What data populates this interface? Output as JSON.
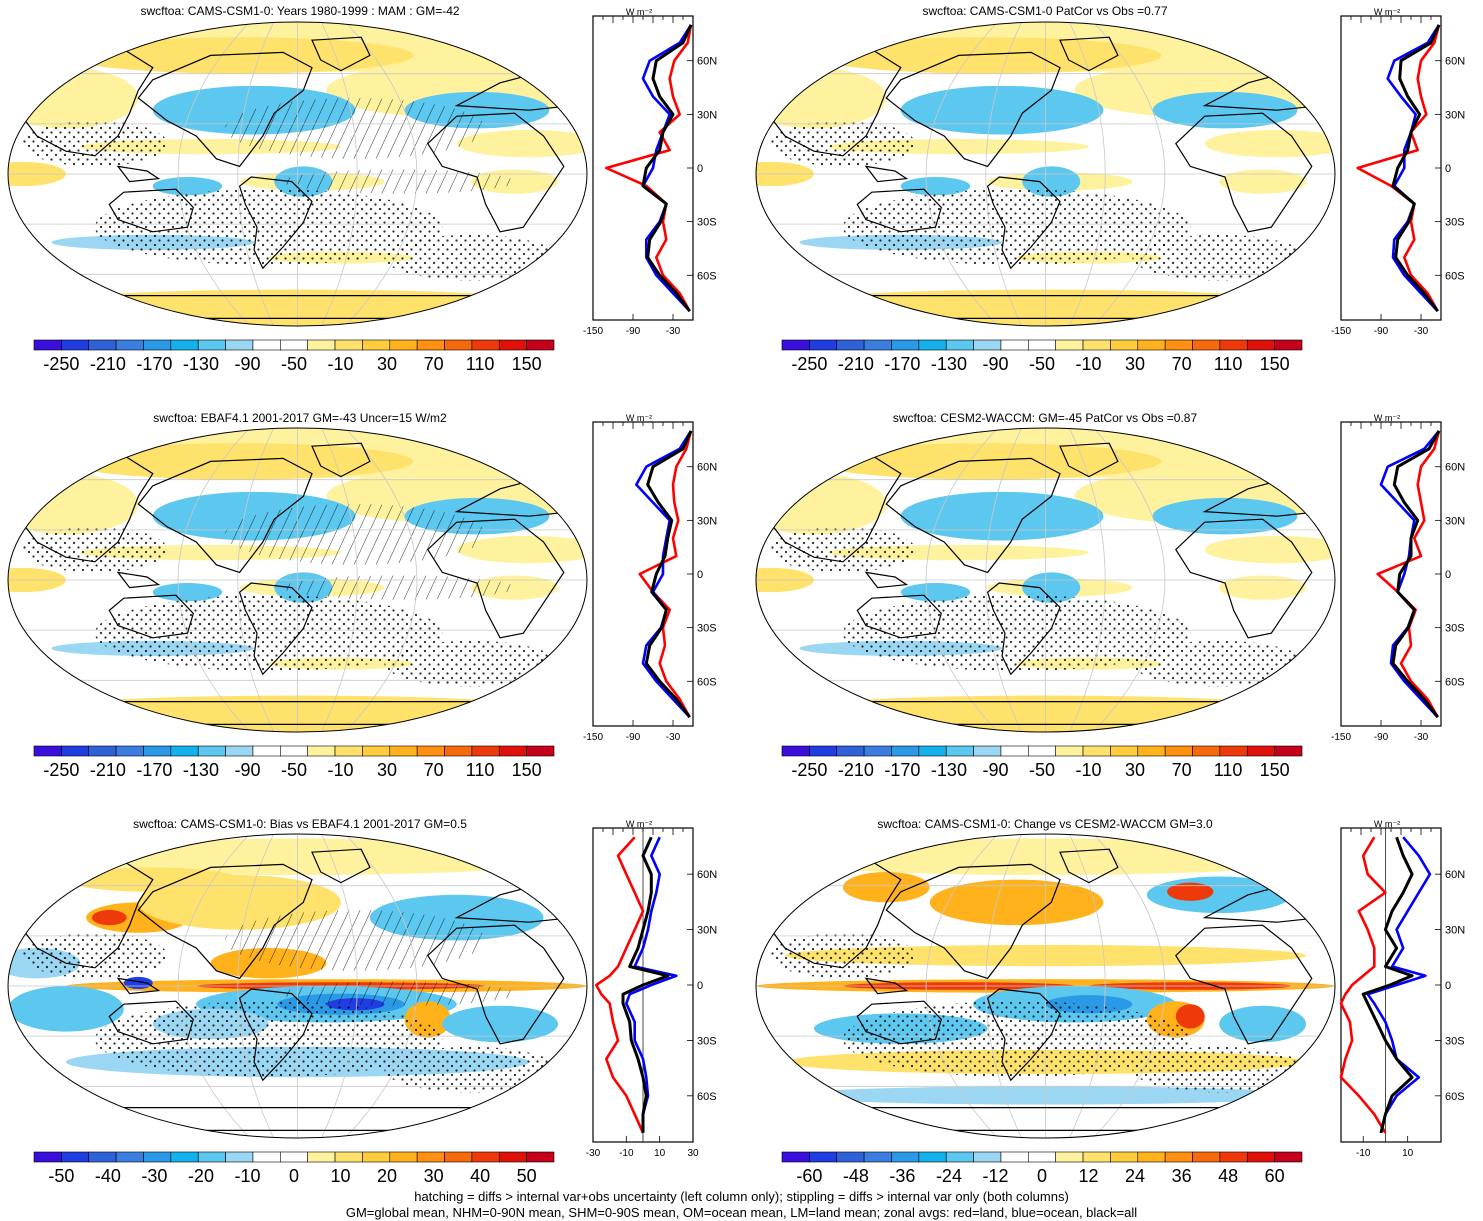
{
  "colors": {
    "land": "#ff0000",
    "ocean": "#0000ff",
    "all": "#000000",
    "grid": "#c8c8c8",
    "palette": [
      "#3a0fdc",
      "#1f3de0",
      "#2f62d8",
      "#3b7ee0",
      "#2a9ae6",
      "#14b2ec",
      "#5cc7ef",
      "#9bd7f2",
      "#ffffff",
      "#ffffff",
      "#fff29e",
      "#ffe26b",
      "#ffcd3c",
      "#ffb21c",
      "#ff9012",
      "#f76a0c",
      "#ee3a0a",
      "#e0100a",
      "#c4001a"
    ]
  },
  "panels": [
    {
      "id": "p1",
      "title": "swcftoa: CAMS-CSM1-0: Years 1980-1999 : MAM : GM=-42",
      "colorbar_labels": [
        "-250",
        "-210",
        "-170",
        "-130",
        "-90",
        "-50",
        "-10",
        "30",
        "70",
        "110",
        "150"
      ],
      "zonal": {
        "unit": "W m⁻²",
        "xticks": [
          "-150",
          "-90",
          "-30"
        ],
        "xlim": [
          -150,
          0
        ],
        "lat_labels": [
          "60N",
          "30N",
          "0",
          "30S",
          "60S"
        ],
        "series": [
          {
            "name": "land",
            "color": "red",
            "lat": [
              80,
              70,
              60,
              50,
              40,
              30,
              20,
              10,
              0,
              -10,
              -20,
              -30,
              -40,
              -50,
              -60,
              -70,
              -80
            ],
            "values": [
              -3,
              -8,
              -28,
              -35,
              -30,
              -20,
              -50,
              -35,
              -130,
              -70,
              -40,
              -45,
              -40,
              -55,
              -45,
              -20,
              -5
            ]
          },
          {
            "name": "ocean",
            "color": "blue",
            "lat": [
              80,
              70,
              60,
              50,
              40,
              30,
              20,
              10,
              0,
              -10,
              -20,
              -30,
              -40,
              -50,
              -60,
              -70,
              -80
            ],
            "values": [
              -3,
              -20,
              -65,
              -75,
              -60,
              -35,
              -45,
              -55,
              -60,
              -75,
              -40,
              -50,
              -70,
              -70,
              -55,
              -30,
              -5
            ]
          },
          {
            "name": "all",
            "color": "black",
            "lat": [
              80,
              70,
              60,
              50,
              40,
              30,
              20,
              10,
              0,
              -10,
              -20,
              -30,
              -40,
              -50,
              -60,
              -70,
              -80
            ],
            "values": [
              -3,
              -15,
              -55,
              -60,
              -50,
              -30,
              -45,
              -50,
              -70,
              -75,
              -40,
              -48,
              -65,
              -68,
              -50,
              -25,
              -5
            ]
          }
        ]
      }
    },
    {
      "id": "p2",
      "title": "swcftoa: CAMS-CSM1-0 PatCor vs Obs =0.77",
      "colorbar_labels": [
        "-250",
        "-210",
        "-170",
        "-130",
        "-90",
        "-50",
        "-10",
        "30",
        "70",
        "110",
        "150"
      ],
      "zonal": {
        "unit": "W m⁻²",
        "xticks": [
          "-150",
          "-90",
          "-30"
        ],
        "xlim": [
          -150,
          0
        ],
        "lat_labels": [
          "60N",
          "30N",
          "0",
          "30S",
          "60S"
        ],
        "series": [
          {
            "name": "land",
            "color": "red",
            "lat": [
              80,
              70,
              60,
              50,
              40,
              30,
              20,
              10,
              0,
              -10,
              -20,
              -30,
              -40,
              -50,
              -60,
              -70,
              -80
            ],
            "values": [
              -3,
              -10,
              -30,
              -35,
              -30,
              -22,
              -45,
              -35,
              -125,
              -75,
              -40,
              -45,
              -40,
              -55,
              -45,
              -20,
              -5
            ]
          },
          {
            "name": "ocean",
            "color": "blue",
            "lat": [
              80,
              70,
              60,
              50,
              40,
              30,
              20,
              10,
              0,
              -10,
              -20,
              -30,
              -40,
              -50,
              -60,
              -70,
              -80
            ],
            "values": [
              -3,
              -20,
              -70,
              -80,
              -60,
              -38,
              -45,
              -55,
              -55,
              -70,
              -40,
              -50,
              -70,
              -72,
              -55,
              -30,
              -5
            ]
          },
          {
            "name": "all",
            "color": "black",
            "lat": [
              80,
              70,
              60,
              50,
              40,
              30,
              20,
              10,
              0,
              -10,
              -20,
              -30,
              -40,
              -50,
              -60,
              -70,
              -80
            ],
            "values": [
              -3,
              -15,
              -60,
              -62,
              -50,
              -32,
              -45,
              -50,
              -65,
              -72,
              -40,
              -48,
              -65,
              -68,
              -50,
              -25,
              -5
            ]
          }
        ]
      }
    },
    {
      "id": "p3",
      "title": "swcftoa: EBAF4.1 2001-2017 GM=-43 Uncer=15 W/m2",
      "colorbar_labels": [
        "-250",
        "-210",
        "-170",
        "-130",
        "-90",
        "-50",
        "-10",
        "30",
        "70",
        "110",
        "150"
      ],
      "zonal": {
        "unit": "W m⁻²",
        "xticks": [
          "-150",
          "-90",
          "-30"
        ],
        "xlim": [
          -150,
          0
        ],
        "lat_labels": [
          "60N",
          "30N",
          "0",
          "30S",
          "60S"
        ],
        "series": [
          {
            "name": "land",
            "color": "red",
            "lat": [
              80,
              70,
              60,
              50,
              40,
              30,
              20,
              10,
              0,
              -10,
              -20,
              -30,
              -40,
              -50,
              -60,
              -70,
              -80
            ],
            "values": [
              -3,
              -10,
              -25,
              -30,
              -28,
              -22,
              -30,
              -25,
              -80,
              -60,
              -35,
              -45,
              -42,
              -50,
              -40,
              -20,
              -5
            ]
          },
          {
            "name": "ocean",
            "color": "blue",
            "lat": [
              80,
              70,
              60,
              50,
              40,
              30,
              20,
              10,
              0,
              -10,
              -20,
              -30,
              -40,
              -50,
              -60,
              -70,
              -80
            ],
            "values": [
              -3,
              -20,
              -70,
              -85,
              -60,
              -35,
              -40,
              -45,
              -45,
              -60,
              -40,
              -48,
              -70,
              -75,
              -55,
              -30,
              -5
            ]
          },
          {
            "name": "all",
            "color": "black",
            "lat": [
              80,
              70,
              60,
              50,
              40,
              30,
              20,
              10,
              0,
              -10,
              -20,
              -30,
              -40,
              -50,
              -60,
              -70,
              -80
            ],
            "values": [
              -3,
              -15,
              -60,
              -68,
              -52,
              -32,
              -38,
              -42,
              -55,
              -62,
              -40,
              -47,
              -65,
              -70,
              -50,
              -25,
              -5
            ]
          }
        ]
      }
    },
    {
      "id": "p4",
      "title": "swcftoa: CESM2-WACCM: GM=-45 PatCor vs Obs =0.87",
      "colorbar_labels": [
        "-250",
        "-210",
        "-170",
        "-130",
        "-90",
        "-50",
        "-10",
        "30",
        "70",
        "110",
        "150"
      ],
      "zonal": {
        "unit": "W m⁻²",
        "xticks": [
          "-150",
          "-90",
          "-30"
        ],
        "xlim": [
          -150,
          0
        ],
        "lat_labels": [
          "60N",
          "30N",
          "0",
          "30S",
          "60S"
        ],
        "series": [
          {
            "name": "land",
            "color": "red",
            "lat": [
              80,
              70,
              60,
              50,
              40,
              30,
              20,
              10,
              0,
              -10,
              -20,
              -30,
              -40,
              -50,
              -60,
              -70,
              -80
            ],
            "values": [
              -3,
              -10,
              -30,
              -35,
              -30,
              -25,
              -40,
              -30,
              -95,
              -65,
              -38,
              -48,
              -45,
              -60,
              -45,
              -20,
              -5
            ]
          },
          {
            "name": "ocean",
            "color": "blue",
            "lat": [
              80,
              70,
              60,
              50,
              40,
              30,
              20,
              10,
              0,
              -10,
              -20,
              -30,
              -40,
              -50,
              -60,
              -70,
              -80
            ],
            "values": [
              -3,
              -25,
              -80,
              -90,
              -65,
              -40,
              -45,
              -48,
              -55,
              -65,
              -40,
              -50,
              -72,
              -75,
              -55,
              -30,
              -5
            ]
          },
          {
            "name": "all",
            "color": "black",
            "lat": [
              80,
              70,
              60,
              50,
              40,
              30,
              20,
              10,
              0,
              -10,
              -20,
              -30,
              -40,
              -50,
              -60,
              -70,
              -80
            ],
            "values": [
              -3,
              -18,
              -65,
              -70,
              -55,
              -35,
              -45,
              -45,
              -62,
              -65,
              -40,
              -49,
              -68,
              -72,
              -50,
              -25,
              -5
            ]
          }
        ]
      }
    },
    {
      "id": "p5",
      "title": "swcftoa: CAMS-CSM1-0: Bias vs EBAF4.1 2001-2017 GM=0.5",
      "colorbar_labels": [
        "-50",
        "-40",
        "-30",
        "-20",
        "-10",
        "0",
        "10",
        "20",
        "30",
        "40",
        "50"
      ],
      "zonal": {
        "unit": "W m⁻²",
        "xticks": [
          "-30",
          "-10",
          "10",
          "30"
        ],
        "xlim": [
          -30,
          30
        ],
        "lat_labels": [
          "60N",
          "30N",
          "0",
          "30S",
          "60S"
        ],
        "series": [
          {
            "name": "land",
            "color": "red",
            "lat": [
              80,
              70,
              60,
              50,
              40,
              30,
              20,
              10,
              5,
              0,
              -5,
              -10,
              -20,
              -30,
              -40,
              -50,
              -60,
              -70,
              -80
            ],
            "values": [
              -5,
              -15,
              -10,
              -5,
              0,
              -5,
              -10,
              -15,
              -20,
              -28,
              -25,
              -20,
              -18,
              -15,
              -22,
              -18,
              -10,
              -5,
              0
            ]
          },
          {
            "name": "ocean",
            "color": "blue",
            "lat": [
              80,
              70,
              60,
              50,
              40,
              30,
              20,
              10,
              5,
              0,
              -5,
              -10,
              -20,
              -30,
              -40,
              -50,
              -60,
              -70,
              -80
            ],
            "values": [
              10,
              5,
              10,
              8,
              5,
              3,
              0,
              -5,
              20,
              5,
              -8,
              -10,
              -5,
              -5,
              0,
              2,
              3,
              0,
              0
            ]
          },
          {
            "name": "all",
            "color": "black",
            "lat": [
              80,
              70,
              60,
              50,
              40,
              30,
              20,
              10,
              5,
              0,
              -5,
              -10,
              -20,
              -30,
              -40,
              -50,
              -60,
              -70,
              -80
            ],
            "values": [
              5,
              0,
              5,
              5,
              3,
              0,
              -3,
              -8,
              15,
              0,
              -12,
              -12,
              -8,
              -7,
              -3,
              0,
              2,
              0,
              0
            ]
          }
        ]
      }
    },
    {
      "id": "p6",
      "title": "swcftoa: CAMS-CSM1-0: Change vs CESM2-WACCM GM=3.0",
      "colorbar_labels": [
        "-60",
        "-48",
        "-36",
        "-24",
        "-12",
        "0",
        "12",
        "24",
        "36",
        "48",
        "60"
      ],
      "zonal": {
        "unit": "W m⁻²",
        "xticks": [
          "-10",
          "10"
        ],
        "xlim": [
          -20,
          25
        ],
        "lat_labels": [
          "60N",
          "30N",
          "0",
          "30S",
          "60S"
        ],
        "series": [
          {
            "name": "land",
            "color": "red",
            "lat": [
              80,
              70,
              60,
              50,
              40,
              30,
              20,
              10,
              5,
              0,
              -5,
              -10,
              -20,
              -30,
              -40,
              -50,
              -60,
              -70,
              -80
            ],
            "values": [
              -5,
              -10,
              -8,
              0,
              -12,
              -8,
              -5,
              -5,
              -10,
              -15,
              -18,
              -20,
              -16,
              -15,
              -18,
              -20,
              -12,
              -5,
              0
            ]
          },
          {
            "name": "ocean",
            "color": "blue",
            "lat": [
              80,
              70,
              60,
              50,
              40,
              30,
              20,
              10,
              5,
              0,
              -5,
              -10,
              -20,
              -30,
              -40,
              -50,
              -60,
              -70,
              -80
            ],
            "values": [
              8,
              15,
              20,
              15,
              10,
              5,
              8,
              3,
              18,
              5,
              -8,
              -5,
              0,
              3,
              5,
              15,
              5,
              0,
              -2
            ]
          },
          {
            "name": "all",
            "color": "black",
            "lat": [
              80,
              70,
              60,
              50,
              40,
              30,
              20,
              10,
              5,
              0,
              -5,
              -10,
              -20,
              -30,
              -40,
              -50,
              -60,
              -70,
              -80
            ],
            "values": [
              5,
              8,
              12,
              8,
              3,
              0,
              5,
              0,
              12,
              2,
              -10,
              -8,
              -4,
              0,
              5,
              12,
              3,
              0,
              -2
            ]
          }
        ]
      }
    }
  ],
  "caption": [
    "hatching = diffs > internal var+obs uncertainty (left column only); stippling = diffs > internal var only (both columns)",
    "GM=global mean, NHM=0-90N mean, SHM=0-90S mean, OM=ocean mean, LM=land mean; zonal avgs: red=land, blue=ocean, black=all"
  ]
}
